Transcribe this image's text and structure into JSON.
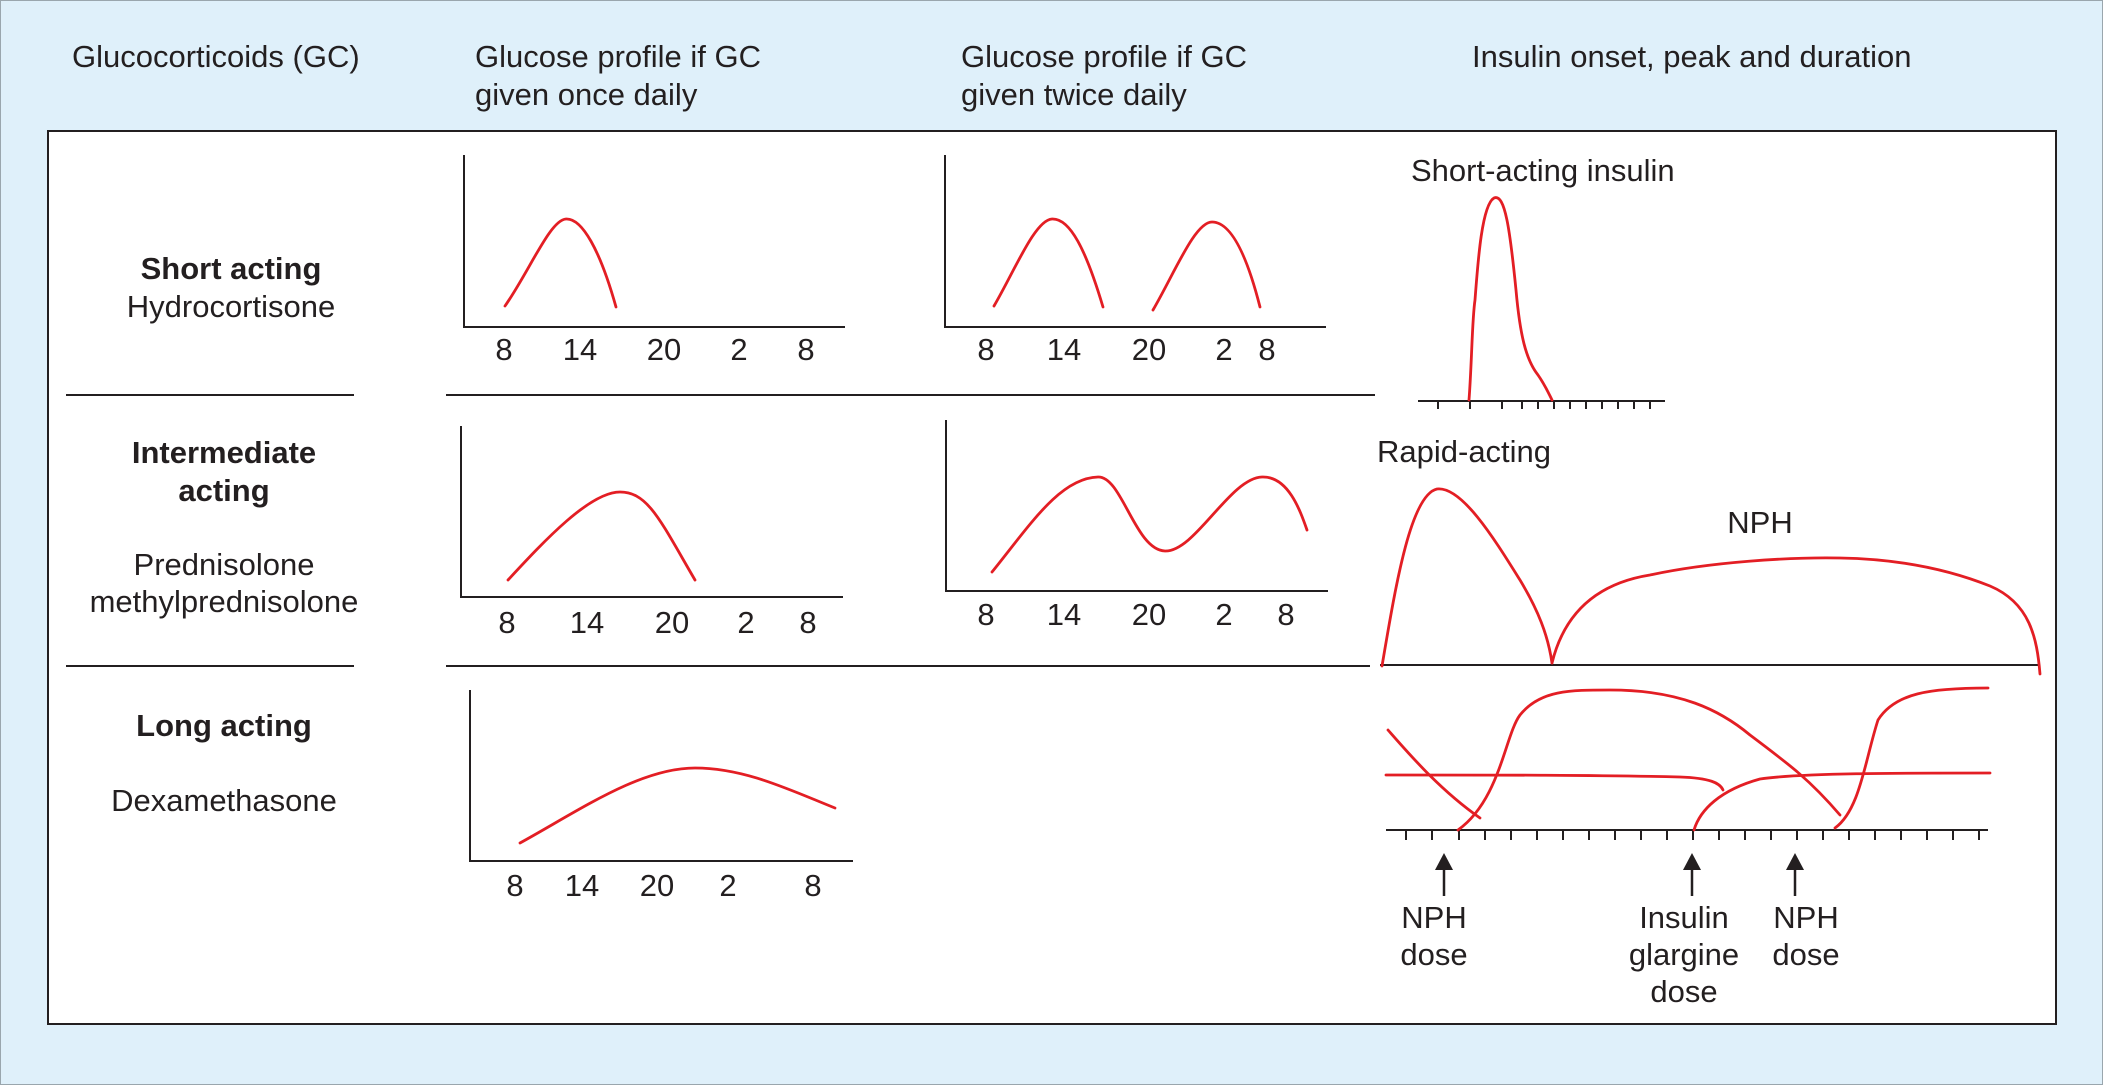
{
  "colors": {
    "background": "#dff0fa",
    "curve": "#e31e24",
    "ink": "#231f20",
    "panel": "#ffffff"
  },
  "headers": {
    "gc": "Glucocorticoids (GC)",
    "once": [
      "Glucose profile if GC",
      "given once daily"
    ],
    "twice": [
      "Glucose profile if GC",
      "given twice daily"
    ],
    "insulin": "Insulin onset, peak and duration"
  },
  "rows": {
    "short": {
      "title": "Short acting",
      "drug": "Hydrocortisone"
    },
    "intermediate": {
      "title": [
        "Intermediate",
        "acting"
      ],
      "drugs": [
        "Prednisolone",
        "methylprednisolone"
      ]
    },
    "long": {
      "title": "Long acting",
      "drug": "Dexamethasone"
    }
  },
  "ticks": {
    "short_once": [
      "8",
      "14",
      "20",
      "2",
      "8"
    ],
    "short_twice": [
      "8",
      "14",
      "20",
      "2",
      "8"
    ],
    "inter_once": [
      "8",
      "14",
      "20",
      "2",
      "8"
    ],
    "inter_twice": [
      "8",
      "14",
      "20",
      "2",
      "8"
    ],
    "long_once": [
      "8",
      "14",
      "20",
      "2",
      "8"
    ]
  },
  "insulin": {
    "short_label": "Short-acting insulin",
    "rapid_label": "Rapid-acting",
    "nph_label": "NPH",
    "arrows": {
      "nph1": [
        "NPH",
        "dose"
      ],
      "glargine": [
        "Insulin",
        "glargine",
        "dose"
      ],
      "nph2": [
        "NPH",
        "dose"
      ]
    }
  }
}
